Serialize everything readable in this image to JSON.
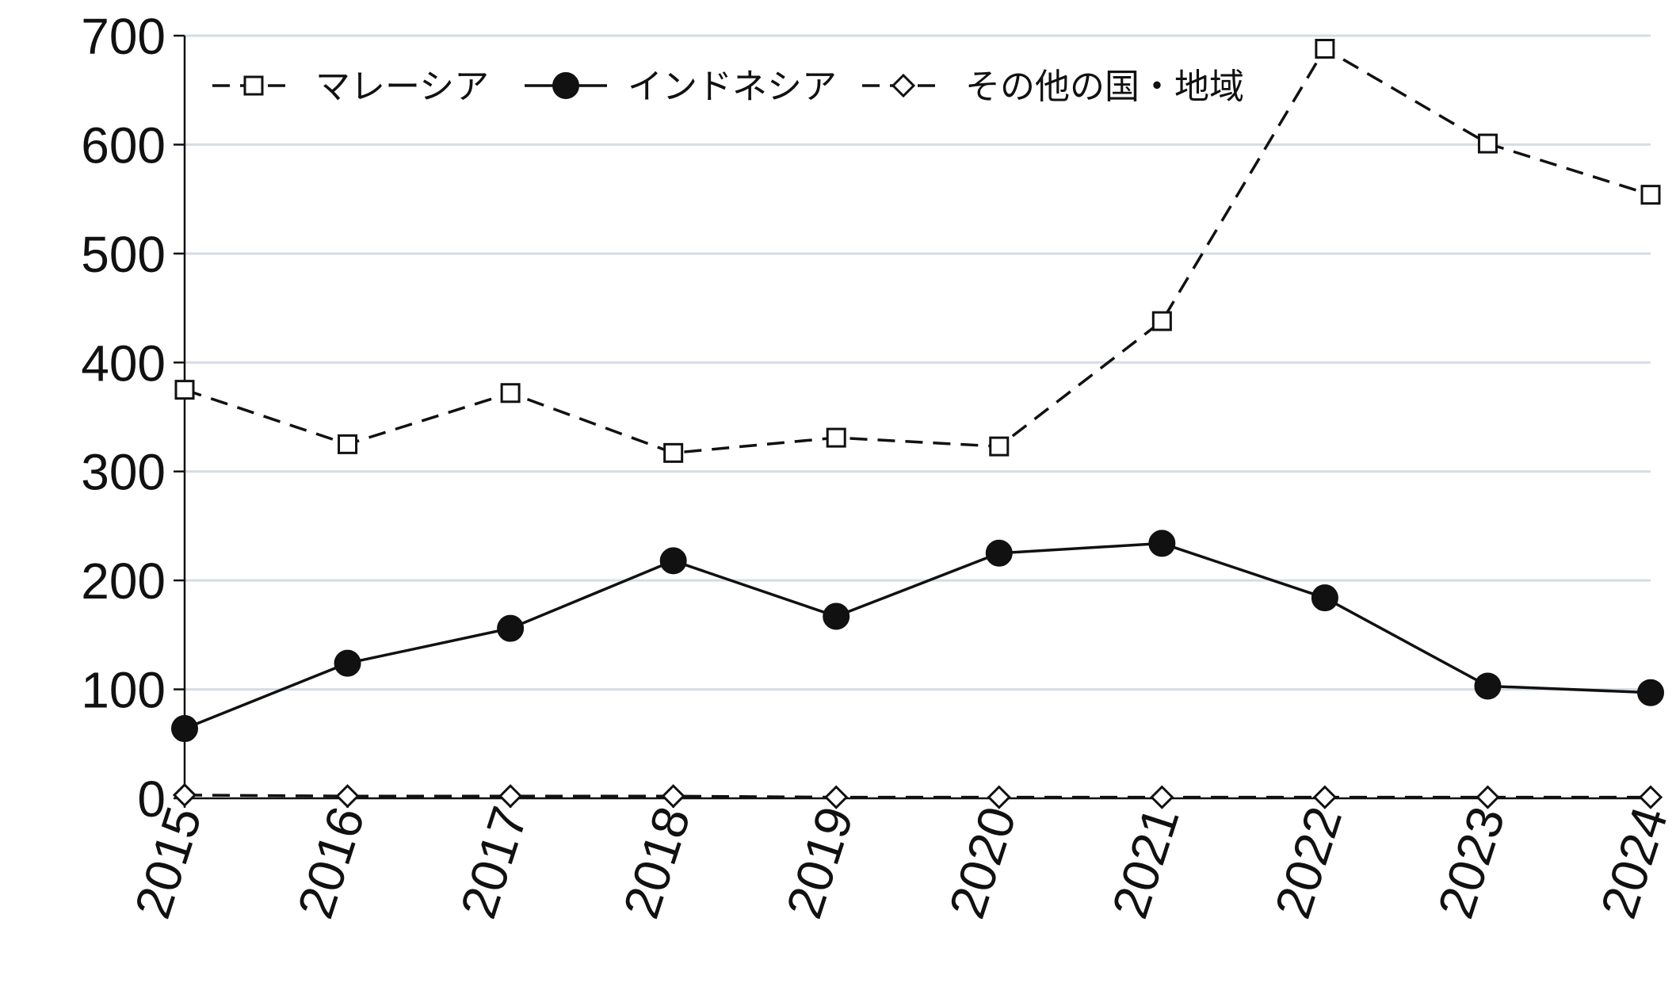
{
  "chart_data": {
    "type": "line",
    "title": "",
    "xlabel": "",
    "ylabel": "",
    "x": [
      "2015",
      "2016",
      "2017",
      "2018",
      "2019",
      "2020",
      "2021",
      "2022",
      "2023",
      "2024"
    ],
    "ylim": [
      0,
      700
    ],
    "yticks": [
      "0",
      "100",
      "200",
      "300",
      "400",
      "500",
      "600",
      "700"
    ],
    "grid": "horizontal",
    "legend_position": "top",
    "series": [
      {
        "name": "マレーシア",
        "marker": "hollow-square",
        "line": "dashed",
        "values": [
          375,
          325,
          372,
          317,
          331,
          323,
          438,
          688,
          601,
          554
        ]
      },
      {
        "name": "インドネシア",
        "marker": "filled-circle",
        "line": "solid",
        "values": [
          64,
          124,
          156,
          218,
          167,
          225,
          234,
          184,
          103,
          97
        ]
      },
      {
        "name": "その他の国・地域",
        "marker": "hollow-diamond",
        "line": "dashed",
        "values": [
          3,
          2,
          2,
          2,
          1,
          1,
          1,
          1,
          1,
          1
        ]
      }
    ],
    "colors": {
      "line": "#111111",
      "grid": "#d4dde6",
      "background": "#ffffff"
    }
  }
}
